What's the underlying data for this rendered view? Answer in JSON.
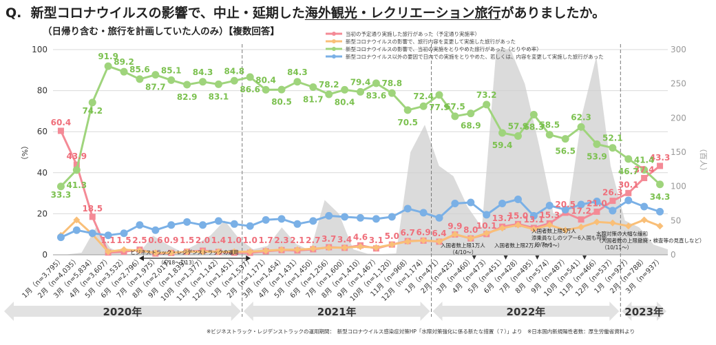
{
  "title": {
    "q": "Q.",
    "part1": "新型コロナウイルスの影響で、中止・延期した",
    "part2": "海外観光・レクリエーション旅行",
    "part3": "がありましたか。"
  },
  "subtitle": "（日帰り含む・旅行を計画していた人のみ）【複数回答】",
  "footnote": "※ビジネストラック・レジデンストラックの運用期間：　新型コロナウイルス感染症対策HP「水際対策強化に係る新たな措置（７）」より　※日本国内新規陽性者数：厚生労働省資料より",
  "chart_data": {
    "type": "line",
    "ylabel": "（%）",
    "y2label": "（百人）",
    "ylim": [
      0,
      100
    ],
    "y2lim": [
      0,
      300
    ],
    "yticks": [
      "0",
      "20",
      "40",
      "60",
      "80",
      "100"
    ],
    "y2ticks": [
      "0",
      "50",
      "100",
      "150",
      "200",
      "250",
      "300"
    ],
    "categories": [
      "1月（n=3,795）",
      "2月（n=4,035）",
      "3月（n=5,834）",
      "4月（n=3,607）",
      "5月（n=3,532）",
      "6月（n=2,796）",
      "7月（n=1,975）",
      "8月（n=2,017）",
      "9月（n=1,839）",
      "10月（n=1,377）",
      "11月（n=1,142）",
      "12月（n=1,451）",
      "1月（n=1,537）",
      "2月（n=1,171）",
      "3月（n=1,454）",
      "4月（n=1,431）",
      "5月（n=1,450）",
      "6月（n=1,256）",
      "7月（n=1,600）",
      "8月（n=1,410）",
      "9月（n=1,467）",
      "10月（n=1,120）",
      "11月（n=968）",
      "12月（n=1,174）",
      "1月（n=471）",
      "2月（n=425）",
      "3月（n=460）",
      "4月（n=473）",
      "5月（n=451）",
      "6月（n=428）",
      "7月（n=495）",
      "8月（n=574）",
      "9月（n=487）",
      "10月（n=541）",
      "11月（n=466）",
      "12月（n=537）",
      "1月（n=927）",
      "2月（n=788）",
      "3月（n=937）"
    ],
    "year_labels": [
      {
        "label": "2020年",
        "from": 0,
        "to": 11
      },
      {
        "label": "2021年",
        "from": 12,
        "to": 23
      },
      {
        "label": "2022年",
        "from": 24,
        "to": 35
      },
      {
        "label": "2023年",
        "from": 36,
        "to": 38
      }
    ],
    "series": [
      {
        "name": "当初の予定通り実施した旅行があった（予定通り実施率）",
        "color": "#f48a96",
        "marker": "square",
        "values": [
          60.4,
          43.9,
          18.5,
          1.1,
          1.5,
          2.5,
          0.6,
          0.9,
          1.5,
          2.0,
          1.4,
          1.0,
          1.0,
          1.7,
          2.3,
          2.1,
          2.7,
          3.7,
          3.4,
          4.6,
          3.1,
          5.0,
          6.7,
          6.9,
          6.4,
          9.9,
          8.0,
          10.1,
          13.7,
          15.0,
          13.1,
          15.3,
          20.5,
          17.2,
          21.0,
          26.3,
          30.1,
          37.4,
          43.3
        ],
        "labels": [
          "60.4",
          "43.9",
          "18.5",
          "1.1",
          "1.5",
          "2.5",
          "0.6",
          "0.9",
          "1.5",
          "2.0",
          "1.4",
          "1.0",
          "1.0",
          "1.7",
          "2.3",
          "2.1",
          "2.7",
          "3.7",
          "3.4",
          "4.6",
          "3.1",
          "5.0",
          "6.7",
          "6.9",
          "6.4",
          "9.9",
          "8.0",
          "10.1",
          "13.7",
          "15.0",
          "13.1",
          "15.3",
          "20.5",
          "17.2",
          "21.0",
          "26.3",
          "30.1",
          "37.4",
          "43.3"
        ]
      },
      {
        "name": "新型コロナウイルスの影響で、旅行内容を変更して実施した旅行があった",
        "color": "#f9bf78",
        "marker": "diamond",
        "values": [
          9.5,
          17.0,
          10.0,
          1.5,
          2.5,
          2.0,
          1.0,
          1.0,
          1.5,
          1.5,
          1.5,
          1.5,
          1.5,
          2.0,
          2.5,
          2.5,
          3.0,
          3.5,
          3.5,
          4.0,
          3.5,
          5.0,
          6.5,
          7.0,
          6.5,
          10.0,
          8.0,
          10.5,
          13.0,
          14.5,
          12.5,
          14.5,
          12.0,
          13.5,
          16.0,
          15.5,
          14.0,
          17.0,
          14.0
        ]
      },
      {
        "name": "新型コロナウイルスの影響で、当初の実施をとりやめた旅行があった（とりやめ率）",
        "color": "#9fd47c",
        "marker": "circle",
        "values": [
          33.3,
          41.3,
          74.2,
          91.9,
          89.2,
          85.6,
          87.7,
          85.1,
          82.9,
          84.3,
          83.1,
          84.8,
          86.6,
          80.4,
          80.5,
          84.3,
          81.7,
          78.2,
          80.4,
          79.4,
          83.6,
          78.8,
          70.5,
          72.4,
          77.9,
          67.5,
          68.9,
          73.2,
          59.4,
          57.9,
          68.3,
          58.5,
          56.5,
          62.3,
          53.9,
          52.1,
          46.7,
          41.4,
          34.3
        ],
        "labels": [
          "33.3",
          "41.3",
          "74.2",
          "91.9",
          "89.2",
          "85.6",
          "87.7",
          "85.1",
          "82.9",
          "84.3",
          "83.1",
          "84.8",
          "86.6",
          "80.4",
          "80.5",
          "84.3",
          "81.7",
          "78.2",
          "80.4",
          "79.4",
          "83.6",
          "78.8",
          "70.5",
          "72.4",
          "77.9",
          "67.5",
          "68.9",
          "73.2",
          "59.4",
          "57.9",
          "68.3",
          "58.5",
          "56.5",
          "62.3",
          "53.9",
          "52.1",
          "46.7",
          "41.4",
          "34.3"
        ]
      },
      {
        "name": "新型コロナウイルス以外の要因で日内での実施をとりやめた、若しくは、内容を変更して実施した旅行があった",
        "color": "#7ab0e6",
        "marker": "circle",
        "values": [
          8.5,
          12.0,
          10.5,
          9.5,
          10.5,
          14.5,
          12.0,
          14.5,
          16.0,
          14.5,
          16.5,
          15.0,
          14.0,
          17.0,
          17.5,
          15.0,
          16.5,
          19.0,
          18.5,
          18.0,
          17.5,
          18.5,
          22.5,
          20.5,
          18.0,
          25.0,
          25.5,
          19.5,
          25.0,
          27.0,
          19.0,
          24.0,
          22.0,
          24.5,
          26.0,
          21.5,
          26.5,
          23.5,
          21.0
        ]
      }
    ],
    "cases_area": {
      "name": "日本国内新規陽性者数",
      "color": "#cfcfcf",
      "values": [
        0,
        0.5,
        3,
        40,
        10,
        1,
        2,
        28,
        15,
        4,
        15,
        28,
        50,
        24,
        8,
        13,
        40,
        16,
        6,
        80,
        60,
        8,
        1.5,
        1,
        2,
        150,
        190,
        130,
        115,
        70,
        40,
        320,
        390,
        250,
        160,
        60,
        60,
        205,
        290,
        130,
        50,
        40,
        15,
        8
      ]
    },
    "annotations": [
      {
        "text": "ビジネストラック・レジデンストラックの運用",
        "sub": "（6/18～1/13）"
      },
      {
        "text": "入国者数上限1万人",
        "sub": "（4/10～）"
      },
      {
        "text": "入国者数上限2万人（6/1～）",
        "sub": ""
      },
      {
        "text": "入国者数上限5万人",
        "sub": ""
      },
      {
        "text": "添乗員なしのツアー6入国も可能",
        "sub": "（9/7～）"
      },
      {
        "text": "水際対策の大幅な緩和",
        "sub": "（入国者数の上限撤廃・検査等の見直しなど）"
      },
      {
        "text": "（10/11～）",
        "sub": ""
      }
    ]
  }
}
